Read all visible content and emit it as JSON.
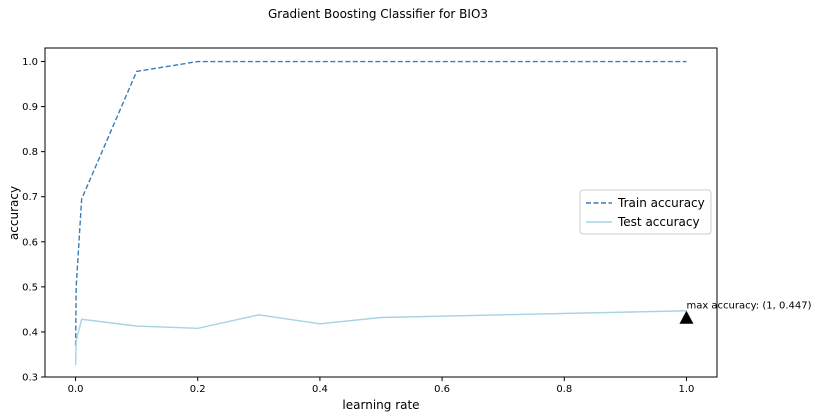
{
  "chart_data": {
    "type": "line",
    "title": "Gradient Boosting Classifier for BIO3",
    "xlabel": "learning rate",
    "ylabel": "accuracy",
    "xlim": [
      -0.05,
      1.05
    ],
    "ylim": [
      0.3,
      1.03
    ],
    "xticks": [
      0.0,
      0.2,
      0.4,
      0.6,
      0.8,
      1.0
    ],
    "xtick_labels": [
      "0.0",
      "0.2",
      "0.4",
      "0.6",
      "0.8",
      "1.0"
    ],
    "yticks": [
      0.3,
      0.4,
      0.5,
      0.6,
      0.7,
      0.8,
      0.9,
      1.0
    ],
    "ytick_labels": [
      "0.3",
      "0.4",
      "0.5",
      "0.6",
      "0.7",
      "0.8",
      "0.9",
      "1.0"
    ],
    "grid": false,
    "legend_position": "center-right",
    "series": [
      {
        "name": "Train accuracy",
        "color": "#3a7cb8",
        "style": "dashed",
        "x": [
          0.0001,
          0.001,
          0.01,
          0.1,
          0.2,
          0.3,
          0.4,
          0.5,
          1.0
        ],
        "y": [
          0.37,
          0.5,
          0.695,
          0.978,
          1.0,
          1.0,
          1.0,
          1.0,
          1.0
        ]
      },
      {
        "name": "Test accuracy",
        "color": "#a6d3e6",
        "style": "solid",
        "x": [
          0.0001,
          0.001,
          0.01,
          0.1,
          0.2,
          0.3,
          0.4,
          0.5,
          1.0
        ],
        "y": [
          0.326,
          0.38,
          0.428,
          0.413,
          0.408,
          0.438,
          0.418,
          0.432,
          0.447
        ]
      }
    ],
    "annotation": {
      "text": "max accuracy: (1, 0.447)",
      "x": 1.0,
      "y": 0.447,
      "marker": "triangle",
      "marker_color": "#000000"
    }
  }
}
